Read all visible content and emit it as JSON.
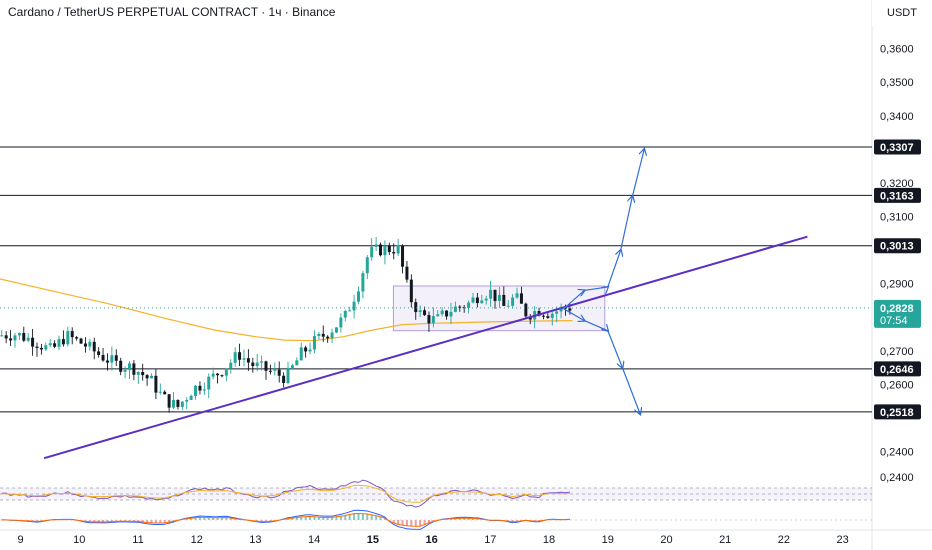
{
  "title": "Cardano / TetherUS PERPETUAL CONTRACT · 1ч · Binance",
  "currency": "USDT",
  "colors": {
    "up": "#26a69a",
    "down": "#131722",
    "ma": "#f5b12a",
    "trendline": "#5b2fc4",
    "arrows": "#2f6ed8",
    "current_price": "#26a69a",
    "range_box": "#b39ddb"
  },
  "chart_data": {
    "type": "candlestick",
    "x_ticks": [
      "9",
      "10",
      "11",
      "12",
      "13",
      "14",
      "15",
      "16",
      "17",
      "18",
      "19",
      "20",
      "21",
      "22",
      "23"
    ],
    "y_ticks": [
      "0,3600",
      "0,3500",
      "0,3400",
      "0,3200",
      "0,3100",
      "0,2900",
      "0,2700",
      "0,2600",
      "0,2400"
    ],
    "ylim": [
      0.233,
      0.3745
    ],
    "xlim": [
      8.65,
      23.5
    ],
    "levels": [
      {
        "label": "0,3307",
        "value": 0.3307
      },
      {
        "label": "0,3163",
        "value": 0.3163
      },
      {
        "label": "0,3013",
        "value": 0.3013
      },
      {
        "label": "0,2646",
        "value": 0.2646
      },
      {
        "label": "0,2518",
        "value": 0.2518
      }
    ],
    "current_price": {
      "label": "0,2828",
      "value": 0.2828,
      "countdown": "07:54"
    },
    "trendline": [
      [
        9.4,
        0.238
      ],
      [
        22.4,
        0.304
      ]
    ],
    "range_box": {
      "x0": 15.35,
      "x1": 18.95,
      "y0": 0.276,
      "y1": 0.2893
    },
    "projected_up": [
      [
        18.25,
        0.2825
      ],
      [
        18.6,
        0.288
      ],
      [
        19.0,
        0.289
      ],
      [
        19.22,
        0.3
      ],
      [
        19.42,
        0.316
      ],
      [
        19.62,
        0.33
      ]
    ],
    "projected_down": [
      [
        18.25,
        0.2825
      ],
      [
        18.6,
        0.279
      ],
      [
        19.0,
        0.276
      ],
      [
        19.25,
        0.265
      ],
      [
        19.55,
        0.2512
      ]
    ],
    "moving_average": [
      [
        8.65,
        0.2914
      ],
      [
        9.5,
        0.288
      ],
      [
        10.5,
        0.284
      ],
      [
        11.5,
        0.2795
      ],
      [
        12.3,
        0.2762
      ],
      [
        13.0,
        0.2742
      ],
      [
        13.5,
        0.2732
      ],
      [
        14.0,
        0.273
      ],
      [
        14.5,
        0.2742
      ],
      [
        15.0,
        0.2762
      ],
      [
        15.5,
        0.2778
      ],
      [
        16.0,
        0.2782
      ],
      [
        16.5,
        0.2784
      ],
      [
        17.0,
        0.2786
      ],
      [
        17.5,
        0.2788
      ],
      [
        18.0,
        0.2789
      ],
      [
        18.4,
        0.279
      ]
    ],
    "price_path": [
      [
        8.65,
        0.2745
      ],
      [
        9.0,
        0.275
      ],
      [
        9.3,
        0.273
      ],
      [
        9.6,
        0.27
      ],
      [
        9.85,
        0.2745
      ],
      [
        10.15,
        0.272
      ],
      [
        10.4,
        0.269
      ],
      [
        10.7,
        0.266
      ],
      [
        11.0,
        0.265
      ],
      [
        11.3,
        0.261
      ],
      [
        11.5,
        0.256
      ],
      [
        11.75,
        0.2532
      ],
      [
        12.0,
        0.2585
      ],
      [
        12.3,
        0.2615
      ],
      [
        12.55,
        0.265
      ],
      [
        12.8,
        0.269
      ],
      [
        13.0,
        0.266
      ],
      [
        13.3,
        0.264
      ],
      [
        13.6,
        0.262
      ],
      [
        13.85,
        0.269
      ],
      [
        14.1,
        0.273
      ],
      [
        14.35,
        0.276
      ],
      [
        14.6,
        0.28
      ],
      [
        14.8,
        0.288
      ],
      [
        15.0,
        0.299
      ],
      [
        15.2,
        0.3002
      ],
      [
        15.5,
        0.3005
      ],
      [
        15.7,
        0.286
      ],
      [
        15.9,
        0.2805
      ],
      [
        16.15,
        0.279
      ],
      [
        16.4,
        0.2822
      ],
      [
        16.7,
        0.284
      ],
      [
        16.9,
        0.287
      ],
      [
        17.1,
        0.2875
      ],
      [
        17.3,
        0.283
      ],
      [
        17.5,
        0.286
      ],
      [
        17.7,
        0.2808
      ],
      [
        17.9,
        0.2822
      ],
      [
        18.1,
        0.2812
      ],
      [
        18.25,
        0.2822
      ],
      [
        18.4,
        0.283
      ]
    ]
  }
}
